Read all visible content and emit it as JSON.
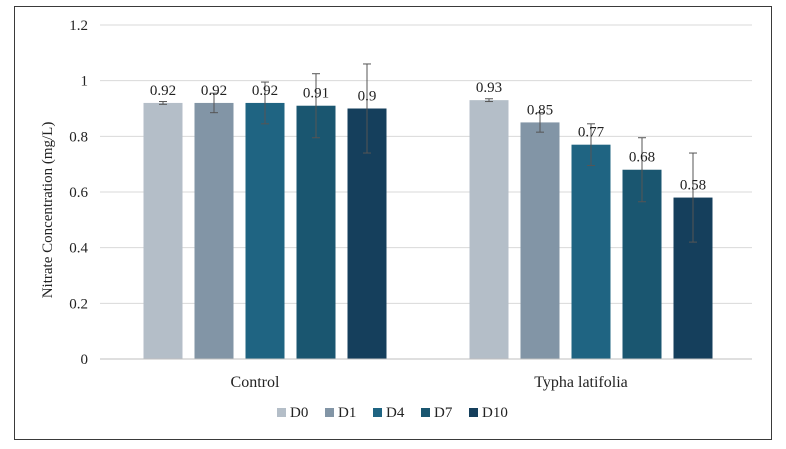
{
  "chart_data": {
    "type": "bar",
    "title": "",
    "xlabel": "",
    "ylabel": "Nitrate Concentration (mg/L)",
    "ylim": [
      0,
      1.2
    ],
    "yticks": [
      "0",
      "0.2",
      "0.4",
      "0.6",
      "0.8",
      "1",
      "1.2"
    ],
    "grid": true,
    "legend_position": "bottom",
    "categories": [
      "Control",
      "Typha latifolia"
    ],
    "series": [
      {
        "name": "D0",
        "color": "#b4bec8",
        "values": [
          0.92,
          0.93
        ],
        "errors": [
          0.005,
          0.005
        ],
        "labels": [
          "0.92",
          "0.93"
        ]
      },
      {
        "name": "D1",
        "color": "#8295a6",
        "values": [
          0.92,
          0.85
        ],
        "errors": [
          0.035,
          0.035
        ],
        "labels": [
          "0.92",
          "0.85"
        ]
      },
      {
        "name": "D4",
        "color": "#1f6482",
        "values": [
          0.92,
          0.77
        ],
        "errors": [
          0.075,
          0.075
        ],
        "labels": [
          "0.92",
          "0.77"
        ]
      },
      {
        "name": "D7",
        "color": "#1a5670",
        "values": [
          0.91,
          0.68
        ],
        "errors": [
          0.115,
          0.115
        ],
        "labels": [
          "0.91",
          "0.68"
        ]
      },
      {
        "name": "D10",
        "color": "#153f5c",
        "values": [
          0.9,
          0.58
        ],
        "errors": [
          0.16,
          0.16
        ],
        "labels": [
          "0.9",
          "0.58"
        ]
      }
    ]
  }
}
